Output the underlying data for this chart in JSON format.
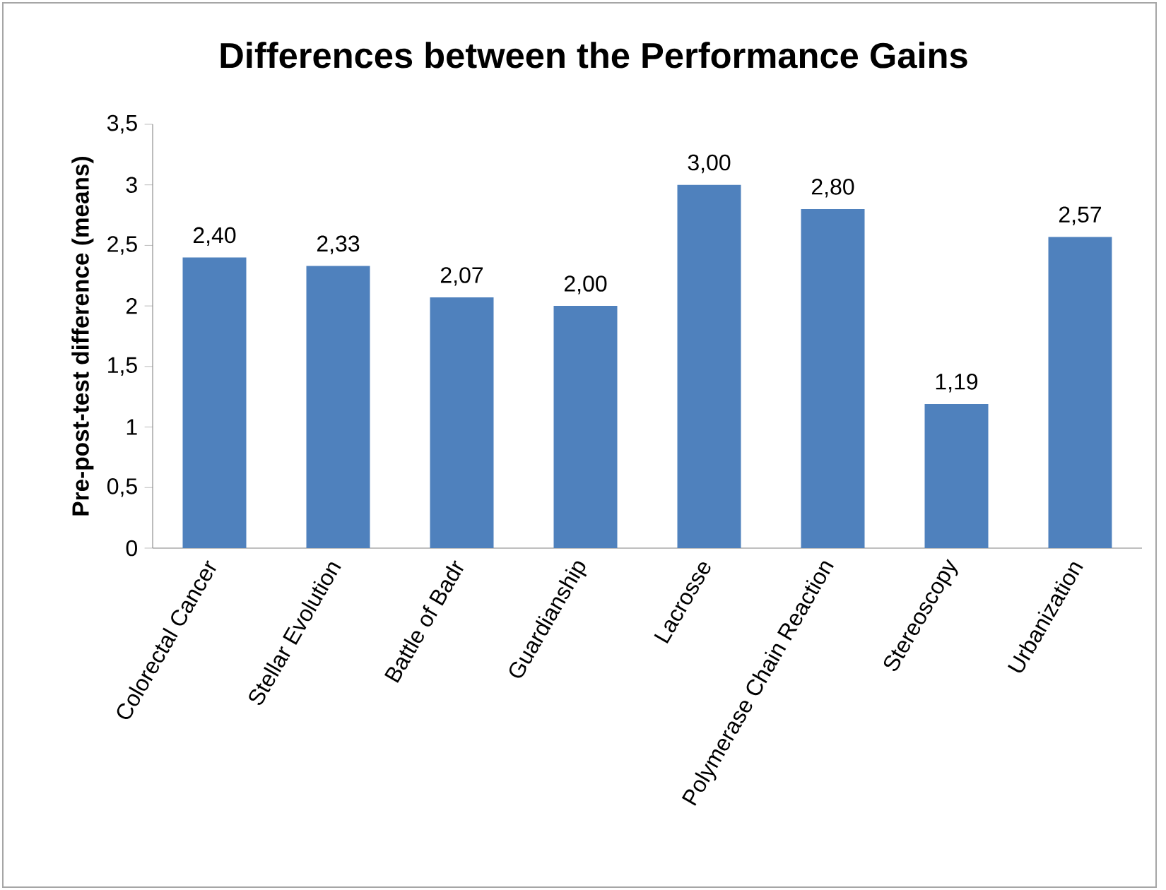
{
  "chart_data": {
    "type": "bar",
    "title": "Differences between the Performance Gains",
    "ylabel": "Pre-post-test difference (means)",
    "categories": [
      "Colorectal Cancer",
      "Stellar Evolution",
      "Battle of Badr",
      "Guardianship",
      "Lacrosse",
      "Polymerase Chain Reaction",
      "Stereoscopy",
      "Urbanization"
    ],
    "values": [
      2.4,
      2.33,
      2.07,
      2.0,
      3.0,
      2.8,
      1.19,
      2.57
    ],
    "value_labels": [
      "2,40",
      "2,33",
      "2,07",
      "2,00",
      "3,00",
      "2,80",
      "1,19",
      "2,57"
    ],
    "color": "#4f81bd",
    "ylim": [
      0,
      3.5
    ],
    "yticks": [
      0,
      {
        "value": 0.5,
        "label": "0,5"
      },
      1,
      {
        "value": 1.5,
        "label": "1,5"
      },
      2,
      {
        "value": 2.5,
        "label": "2,5"
      },
      3,
      {
        "value": 3.5,
        "label": "3,5"
      }
    ]
  }
}
